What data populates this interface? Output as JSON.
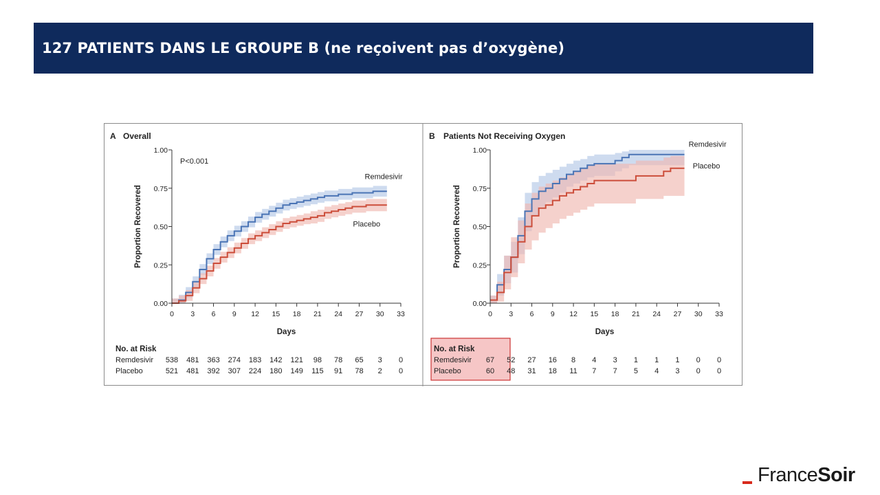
{
  "slide": {
    "title": "127 PATIENTS DANS LE GROUPE B (ne reçoivent pas d’oxygène)",
    "title_bar_color": "#0f2a5c"
  },
  "logo": {
    "part1": "France",
    "part2": "Soir",
    "accent_color": "#d82a1c"
  },
  "colors": {
    "remdesivir": "#4a74b5",
    "remdesivir_band": "#b3c7e6",
    "placebo": "#cc4d3a",
    "placebo_band": "#f0b8b0",
    "highlight_border": "#cc3333",
    "highlight_fill": "#f6c6c6"
  },
  "chart_data": [
    {
      "type": "line",
      "panel_letter": "A",
      "title": "Overall",
      "annotation": "P<0.001",
      "xlabel": "Days",
      "ylabel": "Proportion Recovered",
      "xlim": [
        0,
        33
      ],
      "ylim": [
        0,
        1
      ],
      "xticks": [
        0,
        3,
        6,
        9,
        12,
        15,
        18,
        21,
        24,
        27,
        30,
        33
      ],
      "yticks": [
        "0.00",
        "0.25",
        "0.50",
        "0.75",
        "1.00"
      ],
      "series": [
        {
          "name": "Remdesivir",
          "x": [
            0,
            1,
            2,
            3,
            4,
            5,
            6,
            7,
            8,
            9,
            10,
            11,
            12,
            13,
            14,
            15,
            16,
            17,
            18,
            19,
            20,
            21,
            22,
            23,
            24,
            25,
            26,
            27,
            28,
            29,
            30,
            31
          ],
          "y": [
            0.0,
            0.02,
            0.07,
            0.14,
            0.22,
            0.29,
            0.35,
            0.4,
            0.44,
            0.47,
            0.5,
            0.53,
            0.56,
            0.58,
            0.6,
            0.62,
            0.64,
            0.65,
            0.66,
            0.67,
            0.68,
            0.69,
            0.7,
            0.7,
            0.71,
            0.71,
            0.72,
            0.72,
            0.72,
            0.73,
            0.73,
            0.73
          ],
          "band": [
            0.03,
            0.035,
            0.035,
            0.035,
            0.035,
            0.035,
            0.035,
            0.035,
            0.035,
            0.035,
            0.035,
            0.035,
            0.035,
            0.035,
            0.035,
            0.035,
            0.035,
            0.035,
            0.035,
            0.035,
            0.035,
            0.035,
            0.035,
            0.035,
            0.035,
            0.035,
            0.035,
            0.035,
            0.035,
            0.035,
            0.035,
            0.035
          ]
        },
        {
          "name": "Placebo",
          "x": [
            0,
            1,
            2,
            3,
            4,
            5,
            6,
            7,
            8,
            9,
            10,
            11,
            12,
            13,
            14,
            15,
            16,
            17,
            18,
            19,
            20,
            21,
            22,
            23,
            24,
            25,
            26,
            27,
            28,
            29,
            30,
            31
          ],
          "y": [
            0.0,
            0.015,
            0.05,
            0.1,
            0.16,
            0.21,
            0.26,
            0.3,
            0.33,
            0.36,
            0.39,
            0.42,
            0.44,
            0.46,
            0.48,
            0.5,
            0.52,
            0.53,
            0.54,
            0.55,
            0.56,
            0.57,
            0.59,
            0.6,
            0.61,
            0.62,
            0.63,
            0.63,
            0.64,
            0.64,
            0.64,
            0.64
          ],
          "band": [
            0.03,
            0.035,
            0.035,
            0.035,
            0.035,
            0.035,
            0.035,
            0.035,
            0.035,
            0.035,
            0.035,
            0.035,
            0.035,
            0.035,
            0.035,
            0.035,
            0.035,
            0.035,
            0.035,
            0.035,
            0.04,
            0.04,
            0.04,
            0.04,
            0.04,
            0.04,
            0.04,
            0.04,
            0.04,
            0.04,
            0.04,
            0.04
          ]
        }
      ],
      "at_risk": {
        "heading": "No. at Risk",
        "rows": [
          {
            "label": "Remdesivir",
            "values": [
              "538",
              "481",
              "363",
              "274",
              "183",
              "142",
              "121",
              "98",
              "78",
              "65",
              "3",
              "0"
            ]
          },
          {
            "label": "Placebo",
            "values": [
              "521",
              "481",
              "392",
              "307",
              "224",
              "180",
              "149",
              "115",
              "91",
              "78",
              "2",
              "0"
            ]
          }
        ]
      }
    },
    {
      "type": "line",
      "panel_letter": "B",
      "title": "Patients Not Receiving Oxygen",
      "xlabel": "Days",
      "ylabel": "Proportion Recovered",
      "xlim": [
        0,
        33
      ],
      "ylim": [
        0,
        1
      ],
      "xticks": [
        0,
        3,
        6,
        9,
        12,
        15,
        18,
        21,
        24,
        27,
        30,
        33
      ],
      "yticks": [
        "0.00",
        "0.25",
        "0.50",
        "0.75",
        "1.00"
      ],
      "series": [
        {
          "name": "Remdesivir",
          "x": [
            0,
            1,
            2,
            3,
            4,
            5,
            6,
            7,
            8,
            9,
            10,
            11,
            12,
            13,
            14,
            15,
            16,
            17,
            18,
            19,
            20,
            21,
            22,
            23,
            24,
            25,
            26,
            27,
            28
          ],
          "y": [
            0.02,
            0.12,
            0.22,
            0.3,
            0.44,
            0.6,
            0.68,
            0.73,
            0.75,
            0.78,
            0.81,
            0.84,
            0.86,
            0.88,
            0.9,
            0.91,
            0.91,
            0.91,
            0.93,
            0.95,
            0.97,
            0.97,
            0.97,
            0.97,
            0.97,
            0.97,
            0.97,
            0.97,
            0.97
          ],
          "lo": [
            0.0,
            0.05,
            0.13,
            0.2,
            0.32,
            0.47,
            0.57,
            0.63,
            0.66,
            0.69,
            0.72,
            0.76,
            0.78,
            0.8,
            0.82,
            0.83,
            0.83,
            0.83,
            0.86,
            0.88,
            0.9,
            0.9,
            0.9,
            0.9,
            0.9,
            0.9,
            0.9,
            0.9,
            0.9
          ],
          "hi": [
            0.05,
            0.19,
            0.31,
            0.4,
            0.56,
            0.72,
            0.79,
            0.83,
            0.85,
            0.87,
            0.89,
            0.91,
            0.93,
            0.94,
            0.96,
            0.97,
            0.97,
            0.97,
            0.98,
            0.99,
            1.0,
            1.0,
            1.0,
            1.0,
            1.0,
            1.0,
            1.0,
            1.0,
            1.0
          ]
        },
        {
          "name": "Placebo",
          "x": [
            0,
            1,
            2,
            3,
            4,
            5,
            6,
            7,
            8,
            9,
            10,
            11,
            12,
            13,
            14,
            15,
            16,
            17,
            18,
            19,
            20,
            21,
            22,
            23,
            24,
            25,
            26,
            27,
            28
          ],
          "y": [
            0.02,
            0.07,
            0.2,
            0.3,
            0.4,
            0.5,
            0.57,
            0.62,
            0.64,
            0.67,
            0.7,
            0.72,
            0.74,
            0.76,
            0.78,
            0.8,
            0.8,
            0.8,
            0.8,
            0.8,
            0.8,
            0.83,
            0.83,
            0.83,
            0.83,
            0.86,
            0.88,
            0.88,
            0.88
          ],
          "lo": [
            0.0,
            0.01,
            0.09,
            0.17,
            0.26,
            0.35,
            0.41,
            0.46,
            0.49,
            0.52,
            0.55,
            0.57,
            0.59,
            0.61,
            0.63,
            0.65,
            0.65,
            0.65,
            0.65,
            0.65,
            0.65,
            0.68,
            0.68,
            0.68,
            0.68,
            0.7,
            0.7,
            0.7,
            0.7
          ],
          "hi": [
            0.05,
            0.14,
            0.31,
            0.43,
            0.54,
            0.65,
            0.72,
            0.76,
            0.78,
            0.8,
            0.82,
            0.84,
            0.86,
            0.88,
            0.9,
            0.91,
            0.91,
            0.91,
            0.91,
            0.91,
            0.91,
            0.93,
            0.93,
            0.93,
            0.93,
            0.95,
            0.96,
            0.96,
            0.96
          ]
        }
      ],
      "at_risk": {
        "heading": "No. at Risk",
        "rows": [
          {
            "label": "Remdesivir",
            "values": [
              "67",
              "52",
              "27",
              "16",
              "8",
              "4",
              "3",
              "1",
              "1",
              "1",
              "0",
              "0"
            ]
          },
          {
            "label": "Placebo",
            "values": [
              "60",
              "48",
              "31",
              "18",
              "11",
              "7",
              "7",
              "5",
              "4",
              "3",
              "0",
              "0"
            ]
          }
        ]
      }
    }
  ]
}
